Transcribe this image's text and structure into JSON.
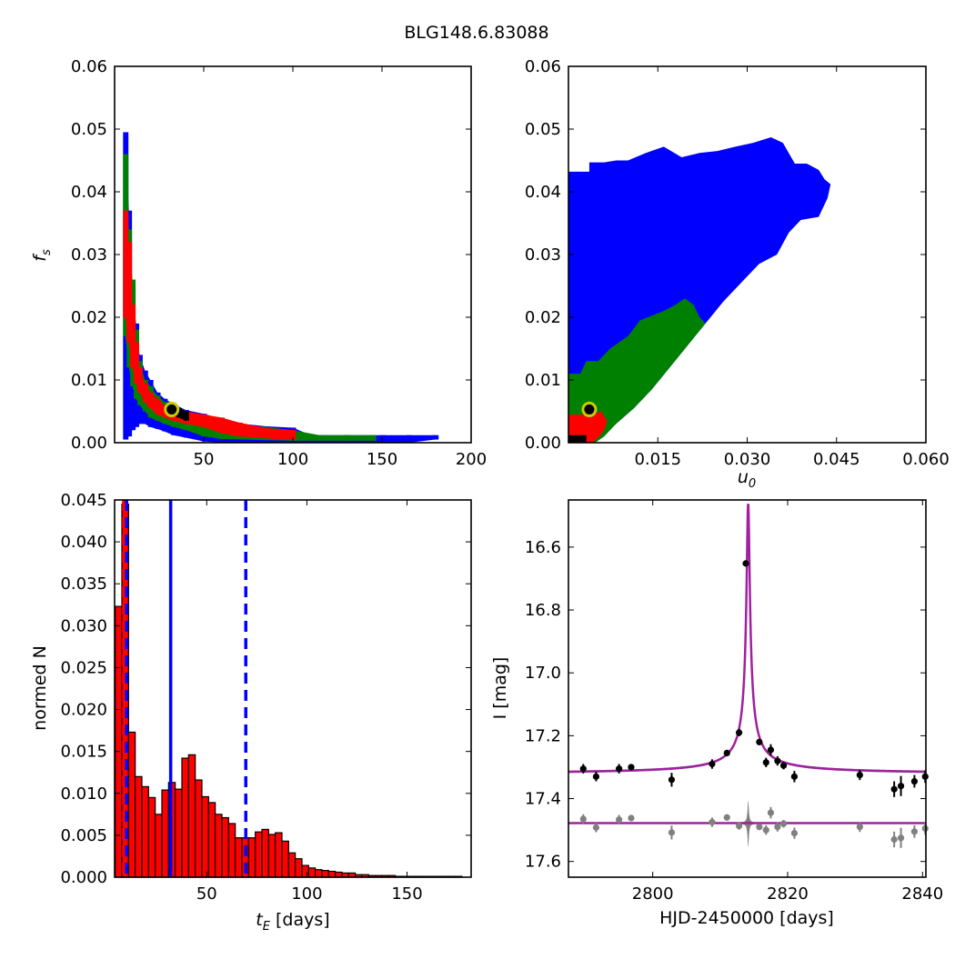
{
  "title": "BLG148.6.83088",
  "colors": {
    "black": "#000000",
    "red": "#ff0000",
    "green": "#008000",
    "blue": "#0000ff",
    "model": "#a020a0",
    "grey": "#808080",
    "marker": "#cccc00"
  },
  "chart_data": [
    {
      "id": "fs-vs-tE",
      "type": "heatmap",
      "xlabel": "",
      "ylabel": "f_s",
      "xlim": [
        0,
        200
      ],
      "ylim": [
        0,
        0.06
      ],
      "xticks": [
        "50",
        "100",
        "150",
        "200"
      ],
      "xtick_values": [
        50,
        100,
        150,
        200
      ],
      "yticks": [
        "0.00",
        "0.01",
        "0.02",
        "0.03",
        "0.04",
        "0.05",
        "0.06"
      ],
      "ytick_values": [
        0,
        0.01,
        0.02,
        0.03,
        0.04,
        0.05,
        0.06
      ],
      "best_fit": [
        32,
        0.0053
      ],
      "contours": [
        {
          "level": "blue",
          "points": [
            [
              6,
              0.0005,
              0.0495
            ],
            [
              8,
              0.001,
              0.037
            ],
            [
              10,
              0.002,
              0.025
            ],
            [
              12,
              0.0025,
              0.019
            ],
            [
              14,
              0.003,
              0.014
            ],
            [
              17,
              0.003,
              0.0115
            ],
            [
              20,
              0.0025,
              0.01
            ],
            [
              24,
              0.0022,
              0.008
            ],
            [
              28,
              0.0018,
              0.007
            ],
            [
              33,
              0.0012,
              0.0062
            ],
            [
              40,
              0.0008,
              0.0052
            ],
            [
              50,
              0.0002,
              0.0046
            ],
            [
              60,
              0,
              0.0038
            ],
            [
              72,
              0,
              0.003
            ],
            [
              85,
              0,
              0.0026
            ],
            [
              100,
              0,
              0.0024
            ],
            [
              110,
              0,
              0.0012
            ],
            [
              130,
              0,
              0.0012
            ],
            [
              150,
              0,
              0.0012
            ],
            [
              165,
              0,
              0.0012
            ],
            [
              180,
              0.0005,
              0.0012
            ]
          ]
        },
        {
          "level": "green",
          "points": [
            [
              6,
              0.017,
              0.046
            ],
            [
              8,
              0.012,
              0.034
            ],
            [
              10,
              0.009,
              0.026
            ],
            [
              12,
              0.007,
              0.018
            ],
            [
              14,
              0.006,
              0.013
            ],
            [
              17,
              0.005,
              0.01
            ],
            [
              20,
              0.004,
              0.009
            ],
            [
              24,
              0.0035,
              0.0075
            ],
            [
              28,
              0.003,
              0.0065
            ],
            [
              33,
              0.0025,
              0.006
            ],
            [
              40,
              0.002,
              0.005
            ],
            [
              50,
              0.001,
              0.0042
            ],
            [
              60,
              0.0006,
              0.0035
            ],
            [
              72,
              0.0005,
              0.0028
            ],
            [
              85,
              0.0004,
              0.0025
            ],
            [
              100,
              0.0003,
              0.002
            ],
            [
              115,
              0.0003,
              0.0012
            ],
            [
              130,
              0.0003,
              0.0012
            ],
            [
              145,
              0.0003,
              0.0012
            ]
          ]
        },
        {
          "level": "red",
          "points": [
            [
              6,
              0.02,
              0.037
            ],
            [
              8,
              0.016,
              0.032
            ],
            [
              10,
              0.012,
              0.022
            ],
            [
              12,
              0.0095,
              0.016
            ],
            [
              14,
              0.008,
              0.012
            ],
            [
              17,
              0.0065,
              0.0095
            ],
            [
              20,
              0.0055,
              0.008
            ],
            [
              24,
              0.0045,
              0.007
            ],
            [
              28,
              0.004,
              0.006
            ],
            [
              33,
              0.0035,
              0.006
            ],
            [
              40,
              0.003,
              0.005
            ],
            [
              50,
              0.0025,
              0.0045
            ],
            [
              60,
              0.0015,
              0.004
            ],
            [
              70,
              0.001,
              0.0032
            ],
            [
              80,
              0.0008,
              0.0026
            ],
            [
              90,
              0.0006,
              0.0022
            ],
            [
              100,
              0.0006,
              0.002
            ]
          ]
        },
        {
          "level": "black",
          "points": [
            [
              32,
              0.0045,
              0.006
            ],
            [
              36,
              0.004,
              0.0055
            ],
            [
              40,
              0.0035,
              0.005
            ]
          ]
        }
      ]
    },
    {
      "id": "fs-vs-u0",
      "type": "heatmap",
      "xlabel": "u_0",
      "ylabel": "",
      "xlim": [
        0,
        0.06
      ],
      "ylim": [
        0,
        0.06
      ],
      "xticks": [
        "0.015",
        "0.030",
        "0.045",
        "0.060"
      ],
      "xtick_values": [
        0.015,
        0.03,
        0.045,
        0.06
      ],
      "yticks": [
        "0.00",
        "0.01",
        "0.02",
        "0.03",
        "0.04",
        "0.05",
        "0.06"
      ],
      "ytick_values": [
        0,
        0.01,
        0.02,
        0.03,
        0.04,
        0.05,
        0.06
      ],
      "best_fit": [
        0.0035,
        0.0053
      ],
      "regions": {
        "blue": [
          [
            0,
            0
          ],
          [
            0,
            0.0432
          ],
          [
            0.0035,
            0.0432
          ],
          [
            0.0035,
            0.0447
          ],
          [
            0.006,
            0.0447
          ],
          [
            0.008,
            0.045
          ],
          [
            0.01,
            0.045
          ],
          [
            0.013,
            0.0462
          ],
          [
            0.016,
            0.0472
          ],
          [
            0.019,
            0.0455
          ],
          [
            0.022,
            0.0462
          ],
          [
            0.025,
            0.0465
          ],
          [
            0.028,
            0.0472
          ],
          [
            0.031,
            0.0478
          ],
          [
            0.034,
            0.0487
          ],
          [
            0.036,
            0.0478
          ],
          [
            0.038,
            0.0445
          ],
          [
            0.04,
            0.0445
          ],
          [
            0.042,
            0.0435
          ],
          [
            0.043,
            0.042
          ],
          [
            0.044,
            0.0412
          ],
          [
            0.0435,
            0.039
          ],
          [
            0.042,
            0.036
          ],
          [
            0.039,
            0.0355
          ],
          [
            0.037,
            0.0335
          ],
          [
            0.035,
            0.03
          ],
          [
            0.032,
            0.0285
          ],
          [
            0.029,
            0.0255
          ],
          [
            0.026,
            0.0225
          ],
          [
            0.023,
            0.019
          ],
          [
            0.02,
            0.0155
          ],
          [
            0.017,
            0.012
          ],
          [
            0.014,
            0.0085
          ],
          [
            0.011,
            0.0055
          ],
          [
            0.008,
            0.003
          ],
          [
            0.005,
            0.0005
          ],
          [
            0.004,
            0
          ]
        ],
        "green": [
          [
            0,
            0
          ],
          [
            0,
            0.011
          ],
          [
            0.002,
            0.011
          ],
          [
            0.003,
            0.013
          ],
          [
            0.005,
            0.013
          ],
          [
            0.007,
            0.015
          ],
          [
            0.01,
            0.017
          ],
          [
            0.012,
            0.0195
          ],
          [
            0.016,
            0.021
          ],
          [
            0.018,
            0.022
          ],
          [
            0.0195,
            0.023
          ],
          [
            0.021,
            0.022
          ],
          [
            0.022,
            0.02
          ],
          [
            0.023,
            0.019
          ],
          [
            0.02,
            0.0155
          ],
          [
            0.017,
            0.012
          ],
          [
            0.014,
            0.0085
          ],
          [
            0.011,
            0.0055
          ],
          [
            0.008,
            0.003
          ],
          [
            0.006,
            0.001
          ],
          [
            0.0045,
            0
          ]
        ],
        "red": [
          [
            0,
            0
          ],
          [
            0,
            0.0045
          ],
          [
            0.004,
            0.0045
          ],
          [
            0.0055,
            0.005
          ],
          [
            0.0065,
            0.0035
          ],
          [
            0.006,
            0.002
          ],
          [
            0.005,
            0.0008
          ],
          [
            0.004,
            0
          ]
        ],
        "black": [
          [
            0,
            0
          ],
          [
            0,
            0.0012
          ],
          [
            0.003,
            0.0012
          ],
          [
            0.003,
            0
          ]
        ]
      }
    },
    {
      "id": "tE-histogram",
      "type": "bar",
      "xlabel": "t_E [days]",
      "ylabel": "normed N",
      "xlim": [
        4,
        182
      ],
      "ylim": [
        0,
        0.045
      ],
      "bin_width": 3.33,
      "bin_start": 4.3,
      "xticks": [
        "50",
        "100",
        "150"
      ],
      "xtick_values": [
        50,
        100,
        150
      ],
      "yticks": [
        "0.000",
        "0.005",
        "0.010",
        "0.015",
        "0.020",
        "0.025",
        "0.030",
        "0.035",
        "0.040",
        "0.045"
      ],
      "ytick_values": [
        0,
        0.005,
        0.01,
        0.015,
        0.02,
        0.025,
        0.03,
        0.035,
        0.04,
        0.045
      ],
      "values": [
        0.0323,
        0.0445,
        0.0173,
        0.012,
        0.0108,
        0.0095,
        0.0075,
        0.0104,
        0.0113,
        0.0105,
        0.0142,
        0.0146,
        0.0116,
        0.0096,
        0.0089,
        0.0075,
        0.0071,
        0.0064,
        0.0047,
        0.0047,
        0.0047,
        0.0054,
        0.0057,
        0.0051,
        0.0053,
        0.0043,
        0.0029,
        0.0022,
        0.0014,
        0.0011,
        0.0009,
        0.0008,
        0.0007,
        0.0006,
        0.0005,
        0.0005,
        0.0003,
        0.0003,
        0.0002,
        0.0002,
        0.0002,
        0.0002,
        0.0001,
        0.0001,
        0.0001,
        0.0001,
        0.0001,
        0.0001,
        0.0001,
        0.0001,
        0.0001,
        0.0001
      ],
      "vlines": [
        {
          "x": 8.5,
          "style": "dashed",
          "color": "red"
        },
        {
          "x": 10.0,
          "style": "dashed",
          "color": "blue"
        },
        {
          "x": 32.0,
          "style": "solid",
          "color": "blue"
        },
        {
          "x": 69.5,
          "style": "dashed",
          "color": "blue"
        }
      ]
    },
    {
      "id": "light-curve",
      "type": "scatter",
      "xlabel": "HJD-2450000 [days]",
      "ylabel": "I [mag]",
      "xlim": [
        2787.5,
        2840.5
      ],
      "ylim": [
        17.65,
        16.45
      ],
      "xticks": [
        "2800",
        "2820",
        "2840"
      ],
      "xtick_values": [
        2800,
        2820,
        2840
      ],
      "yticks": [
        "16.6",
        "16.8",
        "17.0",
        "17.2",
        "17.4",
        "17.6"
      ],
      "ytick_values": [
        16.6,
        16.8,
        17.0,
        17.2,
        17.4,
        17.6
      ],
      "model": {
        "t0": 2814.15,
        "tau": 0.23,
        "base": 17.322,
        "peak": 16.46,
        "residual_base": 17.478
      },
      "points": [
        {
          "x": 2789.7,
          "y": 17.305,
          "err": 0.015
        },
        {
          "x": 2791.6,
          "y": 17.33,
          "err": 0.015
        },
        {
          "x": 2795.0,
          "y": 17.305,
          "err": 0.015
        },
        {
          "x": 2796.8,
          "y": 17.3,
          "err": 0.01
        },
        {
          "x": 2802.8,
          "y": 17.34,
          "err": 0.022
        },
        {
          "x": 2808.8,
          "y": 17.29,
          "err": 0.015
        },
        {
          "x": 2811.0,
          "y": 17.255,
          "err": 0.01
        },
        {
          "x": 2812.8,
          "y": 17.19,
          "err": 0.012
        },
        {
          "x": 2813.8,
          "y": 16.652,
          "err": 0.005
        },
        {
          "x": 2815.8,
          "y": 17.22,
          "err": 0.01
        },
        {
          "x": 2816.8,
          "y": 17.285,
          "err": 0.015
        },
        {
          "x": 2817.5,
          "y": 17.245,
          "err": 0.018
        },
        {
          "x": 2818.5,
          "y": 17.28,
          "err": 0.015
        },
        {
          "x": 2819.4,
          "y": 17.295,
          "err": 0.012
        },
        {
          "x": 2821.0,
          "y": 17.33,
          "err": 0.018
        },
        {
          "x": 2830.7,
          "y": 17.325,
          "err": 0.016
        },
        {
          "x": 2835.8,
          "y": 17.37,
          "err": 0.025
        },
        {
          "x": 2836.8,
          "y": 17.36,
          "err": 0.032
        },
        {
          "x": 2838.8,
          "y": 17.345,
          "err": 0.02
        },
        {
          "x": 2840.4,
          "y": 17.33,
          "err": 0.02
        }
      ],
      "residuals": [
        {
          "x": 2789.7,
          "y": 17.465,
          "err": 0.015
        },
        {
          "x": 2791.6,
          "y": 17.492,
          "err": 0.015
        },
        {
          "x": 2795.0,
          "y": 17.467,
          "err": 0.015
        },
        {
          "x": 2796.8,
          "y": 17.462,
          "err": 0.01
        },
        {
          "x": 2802.8,
          "y": 17.508,
          "err": 0.022
        },
        {
          "x": 2808.8,
          "y": 17.475,
          "err": 0.015
        },
        {
          "x": 2811.0,
          "y": 17.46,
          "err": 0.01
        },
        {
          "x": 2812.8,
          "y": 17.487,
          "err": 0.012
        },
        {
          "x": 2815.8,
          "y": 17.49,
          "err": 0.01
        },
        {
          "x": 2816.8,
          "y": 17.5,
          "err": 0.015
        },
        {
          "x": 2817.5,
          "y": 17.445,
          "err": 0.018
        },
        {
          "x": 2818.5,
          "y": 17.49,
          "err": 0.015
        },
        {
          "x": 2819.4,
          "y": 17.48,
          "err": 0.012
        },
        {
          "x": 2821.0,
          "y": 17.51,
          "err": 0.018
        },
        {
          "x": 2830.7,
          "y": 17.49,
          "err": 0.016
        },
        {
          "x": 2835.8,
          "y": 17.53,
          "err": 0.025
        },
        {
          "x": 2836.8,
          "y": 17.525,
          "err": 0.032
        },
        {
          "x": 2838.8,
          "y": 17.505,
          "err": 0.02
        },
        {
          "x": 2840.4,
          "y": 17.495,
          "err": 0.02
        }
      ]
    }
  ]
}
